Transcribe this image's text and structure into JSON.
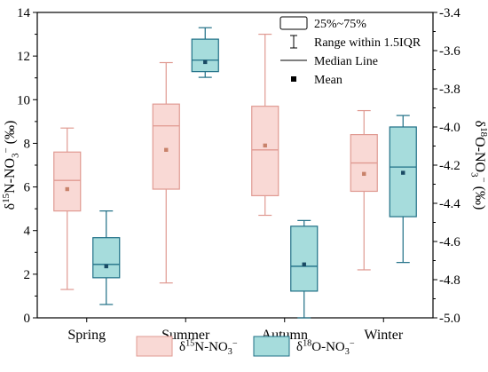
{
  "chart_data": {
    "type": "box",
    "categories": [
      "Spring",
      "Summer",
      "Autumn",
      "Winter"
    ],
    "left_axis": {
      "label_parts": [
        "δ",
        "15",
        "N-NO",
        "3",
        "−",
        " (‰)"
      ],
      "ylim": [
        0,
        14
      ],
      "ticks": [
        "0",
        "2",
        "4",
        "6",
        "8",
        "10",
        "12",
        "14"
      ]
    },
    "right_axis": {
      "label_parts": [
        "δ",
        "18",
        "O-NO",
        "3",
        "−",
        " (‰)"
      ],
      "ylim": [
        -5.0,
        -3.4
      ],
      "ticks": [
        "-3.4",
        "-3.6",
        "-3.8",
        "-4.0",
        "-4.2",
        "-4.4",
        "-4.6",
        "-4.8",
        "-5.0"
      ]
    },
    "series": [
      {
        "name_parts": [
          "δ",
          "15",
          "N-NO",
          "3",
          "−"
        ],
        "axis": "left",
        "fill": "#f9d9d5",
        "stroke": "#e09a92",
        "mean_color": "#c8826a",
        "boxes": [
          {
            "whisker_low": 1.3,
            "q1": 4.9,
            "median": 6.3,
            "q3": 7.6,
            "whisker_high": 8.7,
            "mean": 5.9
          },
          {
            "whisker_low": 1.6,
            "q1": 5.9,
            "median": 8.8,
            "q3": 9.8,
            "whisker_high": 11.7,
            "mean": 7.7
          },
          {
            "whisker_low": 4.7,
            "q1": 5.6,
            "median": 7.7,
            "q3": 9.7,
            "whisker_high": 13.0,
            "mean": 7.9
          },
          {
            "whisker_low": 2.2,
            "q1": 5.8,
            "median": 7.1,
            "q3": 8.4,
            "whisker_high": 9.5,
            "mean": 6.6
          }
        ]
      },
      {
        "name_parts": [
          "δ",
          "18",
          "O-NO",
          "3",
          "−"
        ],
        "axis": "right",
        "fill": "#a6dcdc",
        "stroke": "#1f6f86",
        "mean_color": "#1a4a64",
        "boxes": [
          {
            "whisker_low": -4.93,
            "q1": -4.79,
            "median": -4.72,
            "q3": -4.58,
            "whisker_high": -4.44,
            "mean": -4.73
          },
          {
            "whisker_low": -3.74,
            "q1": -3.71,
            "median": -3.65,
            "q3": -3.54,
            "whisker_high": -3.48,
            "mean": -3.66
          },
          {
            "whisker_low": -5.0,
            "q1": -4.86,
            "median": -4.73,
            "q3": -4.52,
            "whisker_high": -4.49,
            "mean": -4.72
          },
          {
            "whisker_low": -4.71,
            "q1": -4.47,
            "median": -4.21,
            "q3": -4.0,
            "whisker_high": -3.94,
            "mean": -4.24
          }
        ]
      }
    ],
    "legend": {
      "placement": "top-right",
      "items": [
        {
          "kind": "box",
          "label": "25%~75%"
        },
        {
          "kind": "whisker",
          "label": "Range within 1.5IQR"
        },
        {
          "kind": "median",
          "label": "Median Line"
        },
        {
          "kind": "mean",
          "label": "Mean"
        }
      ]
    },
    "grid": false
  }
}
